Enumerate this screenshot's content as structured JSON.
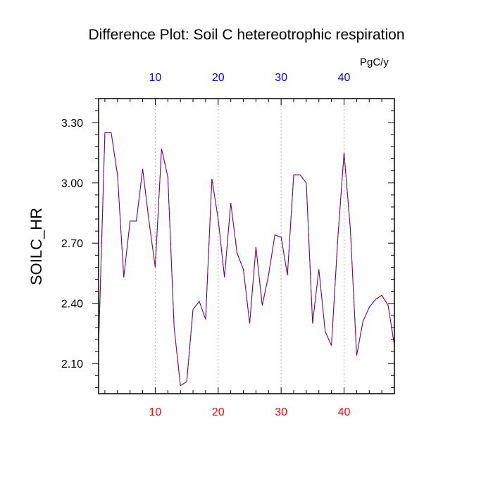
{
  "chart_data": {
    "type": "line",
    "title": "Difference Plot: Soil C hetereotrophic respiration",
    "units": "PgC/y",
    "ylabel": "SOILC_HR",
    "xlabel": "",
    "xlim": [
      1,
      48
    ],
    "ylim": [
      1.95,
      3.42
    ],
    "x_ticks": [
      10,
      20,
      30,
      40
    ],
    "y_ticks": [
      2.1,
      2.4,
      2.7,
      3.0,
      3.3
    ],
    "grid": "vertical dashed at x ticks",
    "series": [
      {
        "color": "#7b00c8",
        "x": [
          1,
          2,
          3,
          4,
          5,
          6,
          7,
          8,
          9,
          10,
          11,
          12,
          13,
          14,
          15,
          16,
          17,
          18,
          19,
          20,
          21,
          22,
          23,
          24,
          25,
          26,
          27,
          28,
          29,
          30,
          31,
          32,
          33,
          34,
          35,
          36,
          37,
          38,
          39,
          40,
          41,
          42,
          43,
          44,
          45,
          46,
          47,
          48
        ],
        "values": [
          2.19,
          3.25,
          3.25,
          3.04,
          2.53,
          2.81,
          2.81,
          3.07,
          2.81,
          2.58,
          3.17,
          3.03,
          2.28,
          1.99,
          2.01,
          2.37,
          2.41,
          2.32,
          3.02,
          2.82,
          2.53,
          2.9,
          2.65,
          2.57,
          2.3,
          2.68,
          2.39,
          2.54,
          2.74,
          2.73,
          2.54,
          3.04,
          3.04,
          3.0,
          2.3,
          2.57,
          2.26,
          2.19,
          2.72,
          3.15,
          2.77,
          2.14,
          2.31,
          2.38,
          2.42,
          2.44,
          2.39,
          2.19
        ]
      }
    ]
  }
}
